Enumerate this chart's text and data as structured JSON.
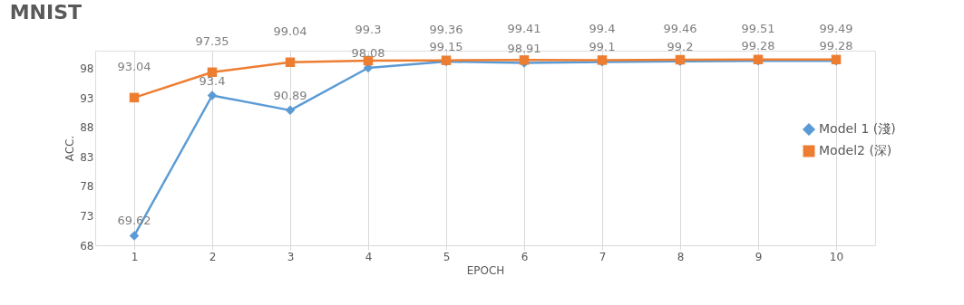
{
  "chart_data": {
    "type": "line",
    "title": "MNIST",
    "xlabel": "EPOCH",
    "ylabel": "ACC.",
    "categories": [
      "1",
      "2",
      "3",
      "4",
      "5",
      "6",
      "7",
      "8",
      "9",
      "10"
    ],
    "series": [
      {
        "name": "Model 1 (淺)",
        "color": "#5b9bd5",
        "marker": "diamond",
        "values": [
          69.62,
          93.4,
          90.89,
          98.08,
          99.15,
          98.91,
          99.1,
          99.2,
          99.28,
          99.28
        ]
      },
      {
        "name": "Model2  (深)",
        "color": "#ed7d31",
        "marker": "square",
        "values": [
          93.04,
          97.35,
          99.04,
          99.3,
          99.36,
          99.41,
          99.4,
          99.46,
          99.51,
          99.49
        ]
      }
    ],
    "ylim": [
      68,
      101
    ],
    "yticks": [
      68,
      73,
      78,
      83,
      88,
      93,
      98
    ],
    "grid": "x",
    "legend": "right",
    "data_labels": true
  }
}
